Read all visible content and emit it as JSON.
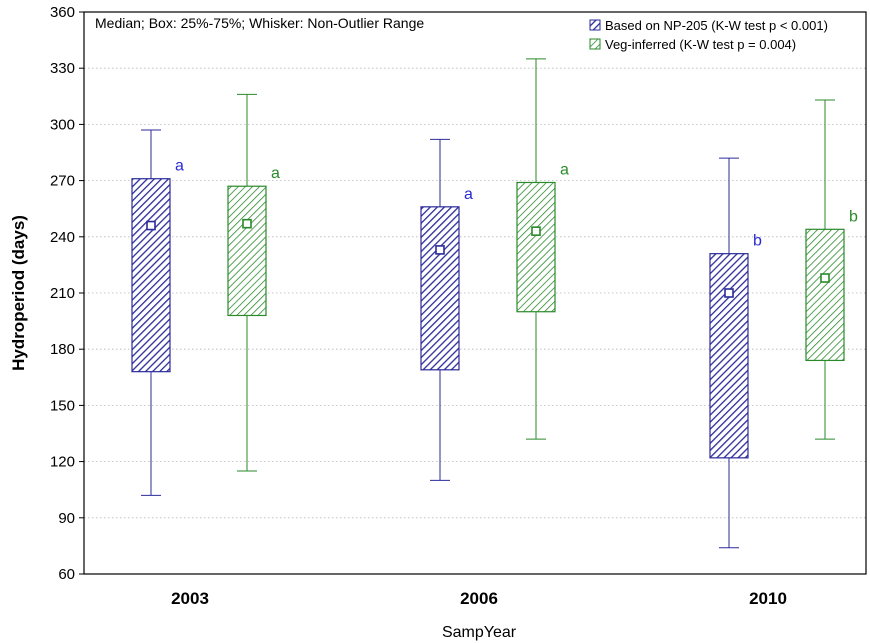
{
  "chart_data": {
    "type": "box",
    "title": "",
    "annotation": "Median; Box: 25%-75%; Whisker: Non-Outlier Range",
    "xlabel": "SampYear",
    "ylabel": "Hydroperiod (days)",
    "ylim": [
      60,
      360
    ],
    "yticks": [
      60,
      90,
      120,
      150,
      180,
      210,
      240,
      270,
      300,
      330,
      360
    ],
    "grid": true,
    "legend_position": "top-right",
    "categories": [
      "2003",
      "2006",
      "2010"
    ],
    "series": [
      {
        "name": "Based on NP-205 (K-W test p < 0.001)",
        "color": "#3333aa",
        "boxes": [
          {
            "min": 102,
            "q1": 168,
            "median": 246,
            "q3": 271,
            "max": 297,
            "label": "a"
          },
          {
            "min": 110,
            "q1": 169,
            "median": 233,
            "q3": 256,
            "max": 292,
            "label": "a"
          },
          {
            "min": 74,
            "q1": 122,
            "median": 210,
            "q3": 231,
            "max": 282,
            "label": "b"
          }
        ]
      },
      {
        "name": "Veg-inferred (K-W test p = 0.004)",
        "color": "#2a8a2a",
        "boxes": [
          {
            "min": 115,
            "q1": 198,
            "median": 247,
            "q3": 267,
            "max": 316,
            "label": "a"
          },
          {
            "min": 132,
            "q1": 200,
            "median": 243,
            "q3": 269,
            "max": 335,
            "label": "a"
          },
          {
            "min": 132,
            "q1": 174,
            "median": 218,
            "q3": 244,
            "max": 313,
            "label": "b"
          }
        ]
      }
    ]
  }
}
